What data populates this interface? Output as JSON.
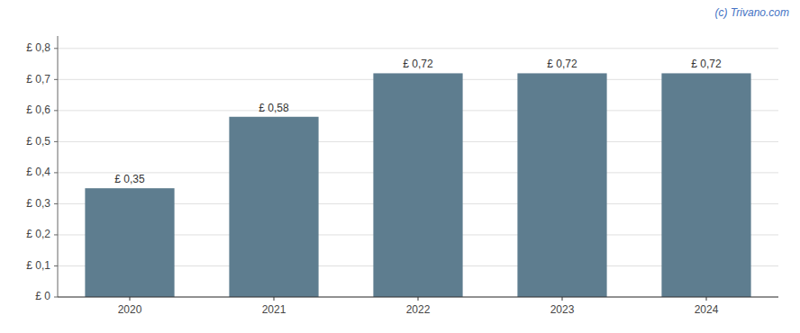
{
  "chart_data": {
    "type": "bar",
    "annotation": "(c) Trivano.com",
    "categories": [
      "2020",
      "2021",
      "2022",
      "2023",
      "2024"
    ],
    "values": [
      0.35,
      0.58,
      0.72,
      0.72,
      0.72
    ],
    "value_labels": [
      "£ 0,35",
      "£ 0,58",
      "£ 0,72",
      "£ 0,72",
      "£ 0,72"
    ],
    "data_labels": true,
    "color": "#5e7d8f",
    "ylim": [
      0,
      0.84
    ],
    "yticks": [
      {
        "value": 0.0,
        "label": "£ 0"
      },
      {
        "value": 0.1,
        "label": "£ 0,1"
      },
      {
        "value": 0.2,
        "label": "£ 0,2"
      },
      {
        "value": 0.3,
        "label": "£ 0,3"
      },
      {
        "value": 0.4,
        "label": "£ 0,4"
      },
      {
        "value": 0.5,
        "label": "£ 0,5"
      },
      {
        "value": 0.6,
        "label": "£ 0,6"
      },
      {
        "value": 0.7,
        "label": "£ 0,7"
      },
      {
        "value": 0.8,
        "label": "£ 0,8"
      }
    ],
    "grid": true
  }
}
